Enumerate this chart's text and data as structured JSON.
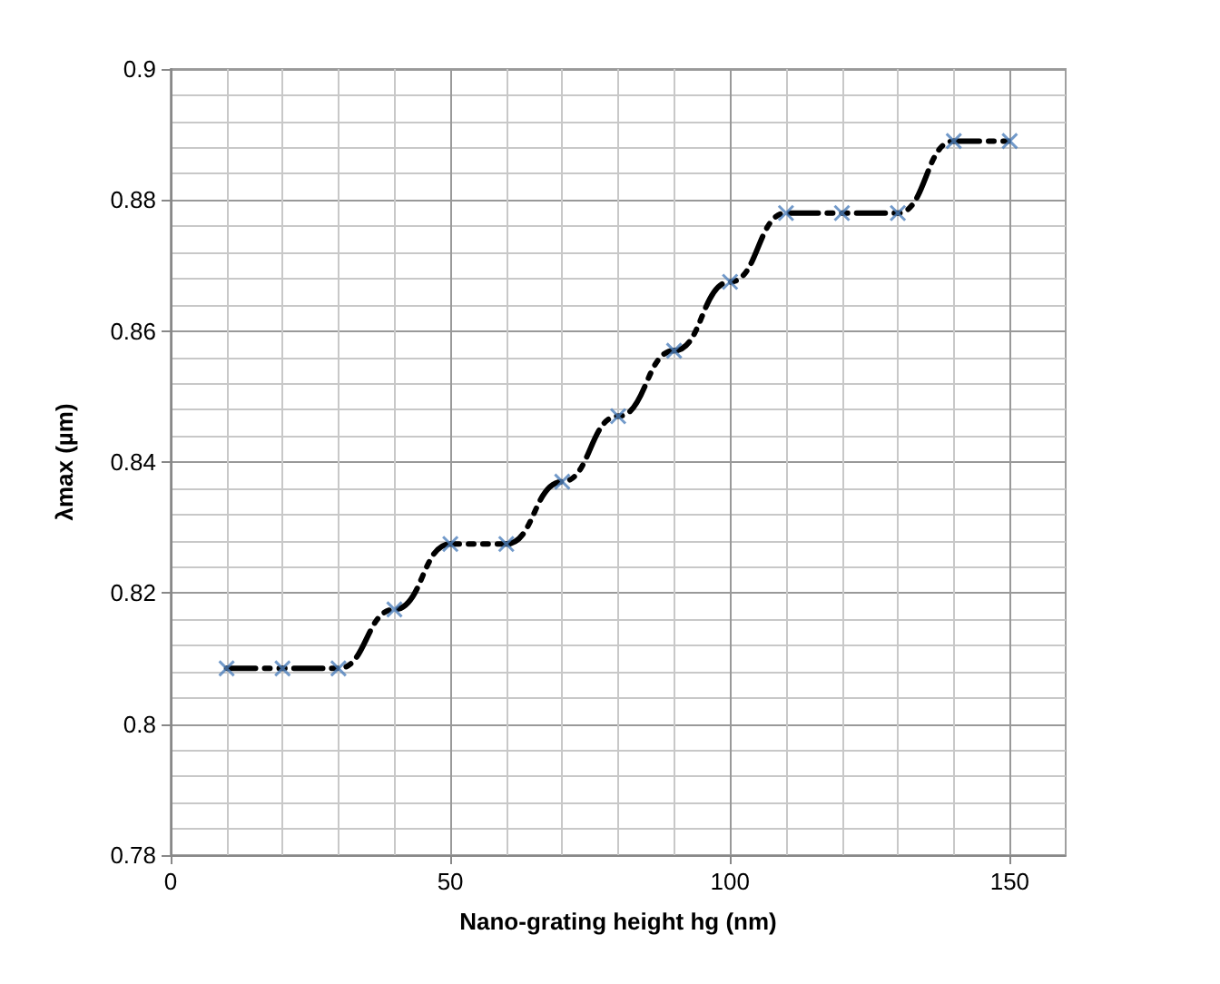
{
  "chart_data": {
    "type": "line",
    "xlabel": "Nano-grating height hg (nm)",
    "ylabel": "λmax (µm)",
    "x": [
      10,
      20,
      30,
      40,
      50,
      60,
      70,
      80,
      90,
      100,
      110,
      120,
      130,
      140,
      150
    ],
    "series": [
      {
        "type": "line",
        "color": "#000000",
        "line_style": "dashed",
        "marker": "none",
        "values": [
          0.8085,
          0.8085,
          0.8085,
          0.8175,
          0.8275,
          0.8275,
          0.837,
          0.847,
          0.857,
          0.8675,
          0.878,
          0.878,
          0.878,
          0.889,
          0.889
        ]
      },
      {
        "type": "scatter",
        "color": "#4f81bd",
        "marker": "cross",
        "values": [
          0.8085,
          0.8085,
          0.8085,
          0.8175,
          0.8275,
          0.8275,
          0.837,
          0.847,
          0.857,
          0.8675,
          0.878,
          0.878,
          0.878,
          0.889,
          0.889
        ]
      }
    ],
    "xlim": [
      0,
      160
    ],
    "xticks": [
      0,
      50,
      100,
      150
    ],
    "ylim": [
      0.78,
      0.9
    ],
    "yticks": [
      0.78,
      0.8,
      0.82,
      0.84,
      0.86,
      0.88,
      0.9
    ],
    "grid": true
  }
}
